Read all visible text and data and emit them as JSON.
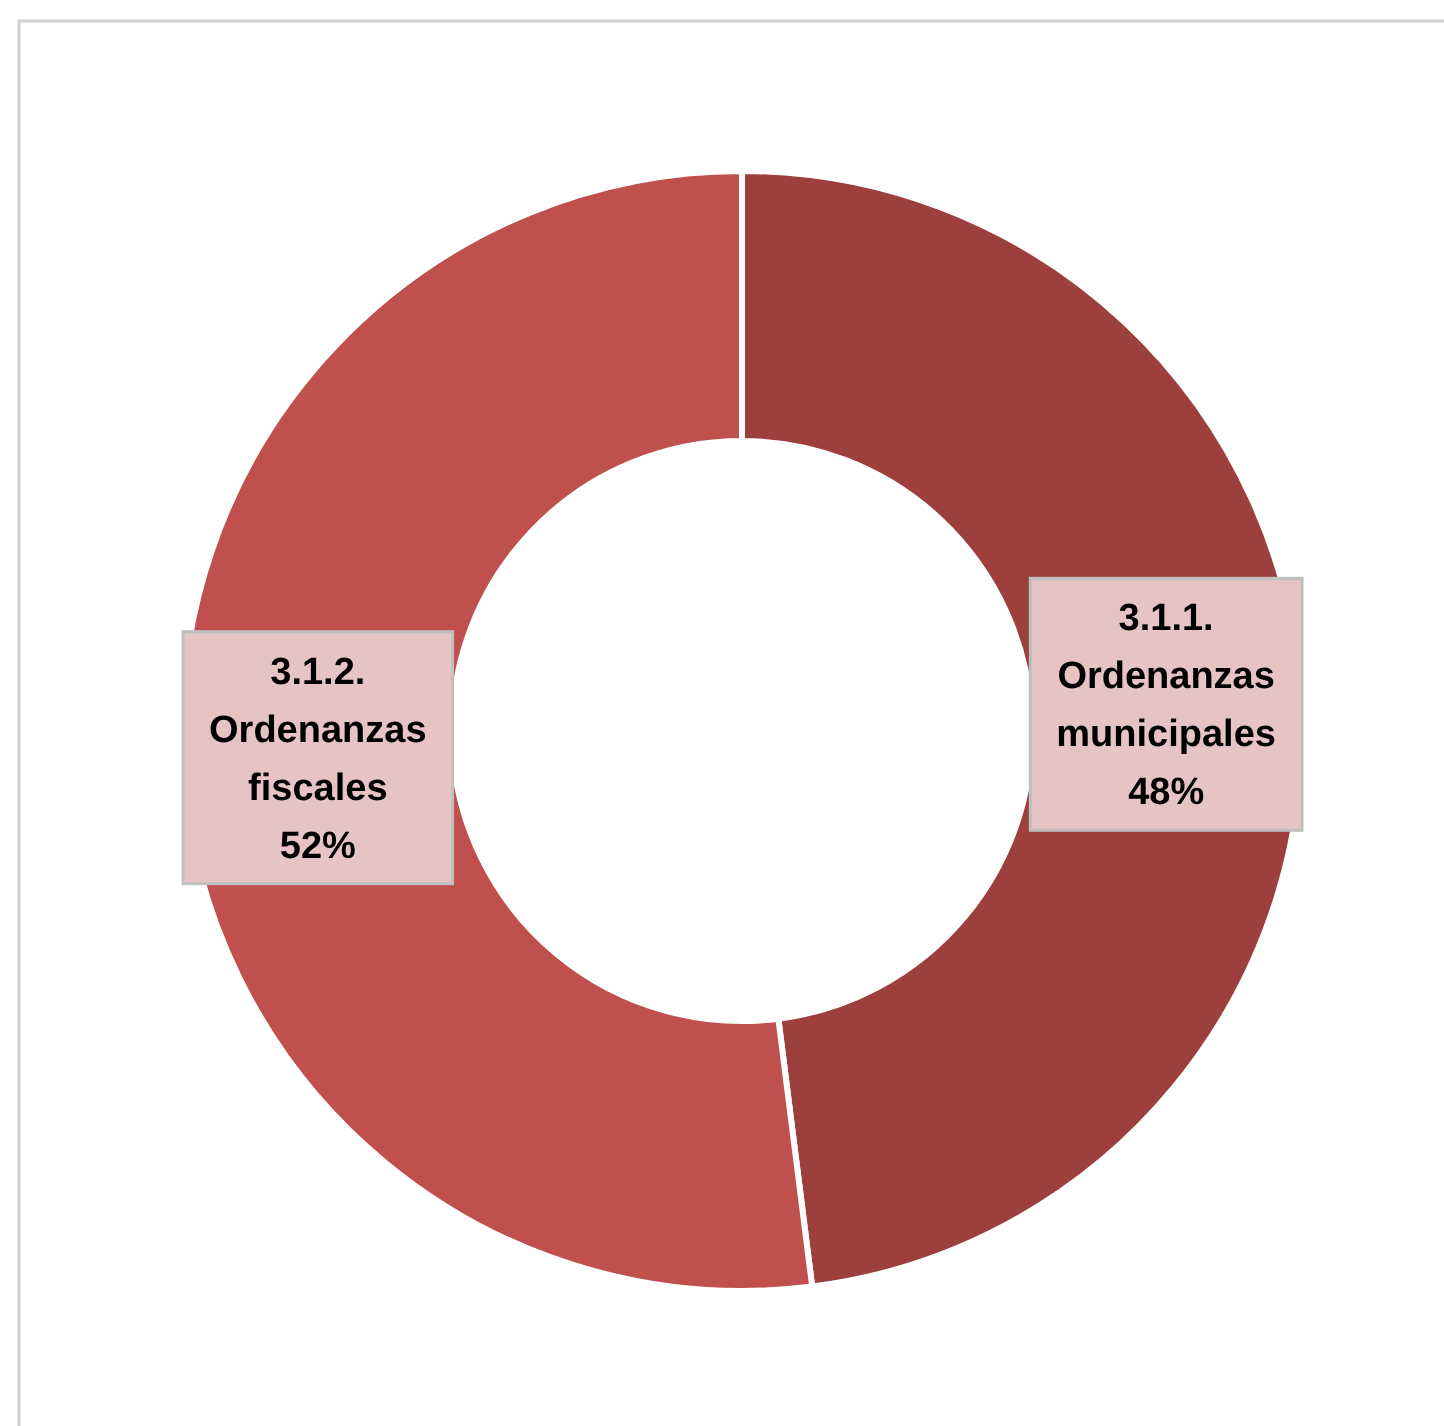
{
  "chart_data": {
    "type": "donut",
    "categories": [
      "3.1.1. Ordenanzas municipales",
      "3.1.2. Ordenanzas fiscales"
    ],
    "values": [
      48,
      52
    ],
    "colors": [
      "#9d3f3c",
      "#c0504d"
    ],
    "value_labels": [
      "48%",
      "52%"
    ]
  }
}
